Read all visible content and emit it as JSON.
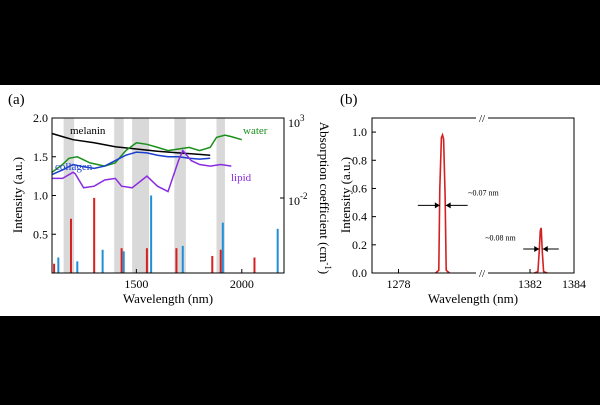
{
  "chart_data": [
    {
      "panel_label": "(a)",
      "type": "line",
      "xlabel": "Wavelength (nm)",
      "ylabel": "Intensity (a.u.)",
      "y2label": "Absorption coefficient (cm",
      "y2label_sup": "-1",
      "y2label_end": ")",
      "xlim": [
        1100,
        2200
      ],
      "ylim": [
        0,
        2.0
      ],
      "y2_scale": "log",
      "x_ticks": [
        "1500",
        "2000"
      ],
      "y_ticks": [
        "0.5",
        "1.0",
        "1.5",
        "2.0"
      ],
      "y2_ticks": [
        {
          "base": "10",
          "exp": "3"
        },
        {
          "base": "10",
          "exp": "-2"
        }
      ],
      "shaded_bands": [
        [
          1155,
          1205
        ],
        [
          1395,
          1440
        ],
        [
          1480,
          1560
        ],
        [
          1680,
          1735
        ],
        [
          1880,
          1920
        ]
      ],
      "series": [
        {
          "name": "melanin",
          "color": "#000000",
          "x": [
            1100,
            1150,
            1200,
            1300,
            1400,
            1500,
            1600,
            1700,
            1800,
            1850
          ],
          "y": [
            1.8,
            1.76,
            1.72,
            1.68,
            1.63,
            1.6,
            1.57,
            1.55,
            1.53,
            1.52
          ]
        },
        {
          "name": "water",
          "color": "#1a8f1a",
          "x": [
            1100,
            1150,
            1180,
            1220,
            1280,
            1350,
            1400,
            1450,
            1500,
            1550,
            1600,
            1650,
            1700,
            1750,
            1800,
            1850,
            1880,
            1920,
            1950,
            2000
          ],
          "y": [
            1.3,
            1.4,
            1.48,
            1.5,
            1.42,
            1.38,
            1.42,
            1.58,
            1.68,
            1.66,
            1.62,
            1.58,
            1.6,
            1.62,
            1.58,
            1.62,
            1.75,
            1.78,
            1.76,
            1.72
          ]
        },
        {
          "name": "collagen",
          "color": "#1a3fcf",
          "x": [
            1100,
            1150,
            1200,
            1250,
            1300,
            1350,
            1400,
            1450,
            1500,
            1550,
            1600,
            1650,
            1700,
            1750,
            1800,
            1850
          ],
          "y": [
            1.27,
            1.33,
            1.4,
            1.37,
            1.35,
            1.38,
            1.45,
            1.52,
            1.56,
            1.55,
            1.52,
            1.5,
            1.5,
            1.48,
            1.47,
            1.48
          ]
        },
        {
          "name": "lipid",
          "color": "#8a2be2",
          "x": [
            1100,
            1150,
            1200,
            1210,
            1250,
            1300,
            1350,
            1400,
            1430,
            1480,
            1550,
            1600,
            1650,
            1700,
            1720,
            1760,
            1800,
            1850,
            1900,
            1950
          ],
          "y": [
            1.22,
            1.22,
            1.3,
            1.28,
            1.1,
            1.12,
            1.2,
            1.22,
            1.12,
            1.1,
            1.25,
            1.12,
            1.05,
            1.45,
            1.58,
            1.45,
            1.4,
            1.38,
            1.4,
            1.38
          ]
        }
      ],
      "bars_red": {
        "color": "#d42020",
        "x": [
          1110,
          1190,
          1300,
          1430,
          1550,
          1690,
          1860,
          1900,
          2060
        ],
        "y": [
          0.12,
          0.7,
          0.97,
          0.32,
          0.32,
          0.32,
          0.22,
          0.3,
          0.2
        ]
      },
      "bars_blue": {
        "color": "#1f8fd8",
        "x": [
          1130,
          1220,
          1340,
          1440,
          1570,
          1720,
          1910,
          2170
        ],
        "y": [
          0.2,
          0.15,
          0.3,
          0.28,
          1.0,
          0.35,
          0.65,
          0.57
        ]
      }
    },
    {
      "panel_label": "(b)",
      "type": "line",
      "xlabel": "Wavelength (nm)",
      "ylabel": "Intensity (a.u.)",
      "ylim": [
        0,
        1.1
      ],
      "y_ticks": [
        "0.0",
        "0.2",
        "0.4",
        "0.6",
        "0.8",
        "1.0"
      ],
      "x_ticks": [
        "1278",
        "1382",
        "1384"
      ],
      "axis_break": "//",
      "segments": [
        {
          "xlim": [
            1277,
            1281
          ]
        },
        {
          "xlim": [
            1380,
            1384
          ]
        }
      ],
      "series": [
        {
          "color": "#d42020",
          "segment": 0,
          "x": [
            1279.4,
            1279.52,
            1279.56,
            1279.62,
            1279.66,
            1279.7,
            1279.76,
            1279.8,
            1279.92
          ],
          "y": [
            0,
            0.02,
            0.6,
            0.96,
            0.98,
            0.95,
            0.55,
            0.02,
            0
          ]
        },
        {
          "color": "#d42020",
          "segment": 1,
          "x": [
            1382.2,
            1382.36,
            1382.42,
            1382.47,
            1382.51,
            1382.56,
            1382.62,
            1382.78
          ],
          "y": [
            0,
            0.01,
            0.15,
            0.3,
            0.32,
            0.15,
            0.01,
            0
          ]
        }
      ],
      "annotations": [
        {
          "text": "~0.07 nm",
          "segment": 0,
          "x": 1280.1,
          "y": 0.48
        },
        {
          "text": "~0.08 nm",
          "segment": 1,
          "x": 1381.6,
          "y": 0.21
        }
      ]
    }
  ]
}
